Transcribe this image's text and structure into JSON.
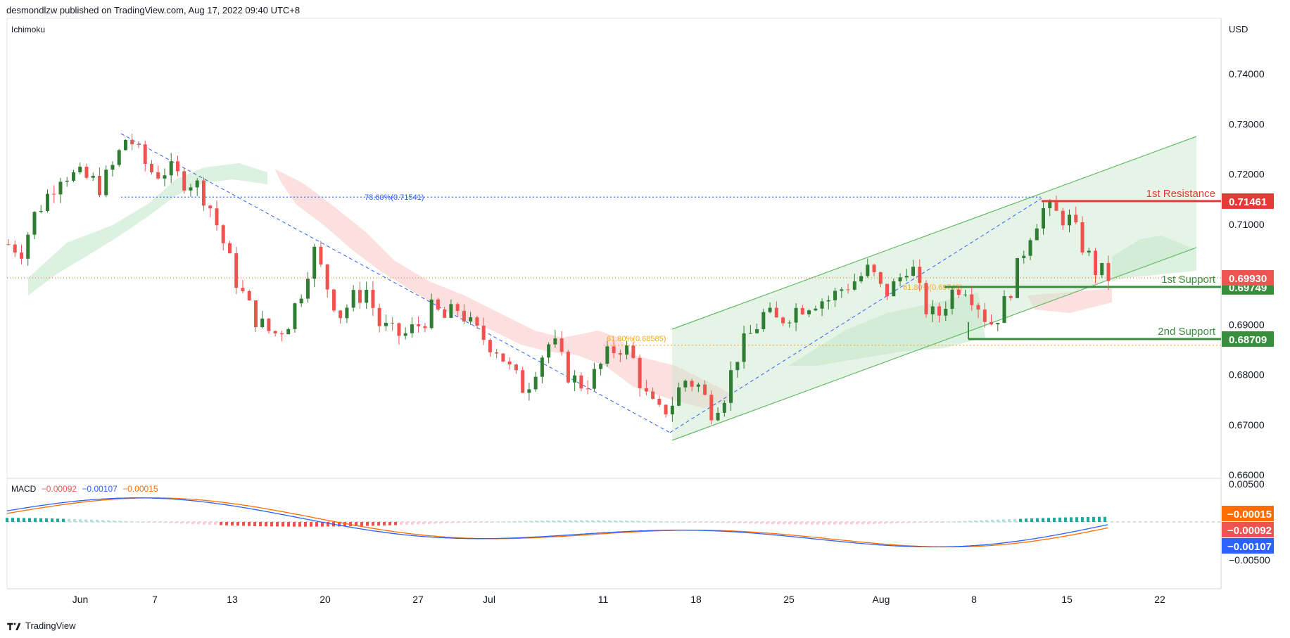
{
  "header": {
    "published": "desmondlzw published on TradingView.com, Aug 17, 2022 09:40 UTC+8"
  },
  "indicator_label": "Ichimoku",
  "currency": "USD",
  "macd_legend": {
    "label": "MACD",
    "hist": "−0.00092",
    "macd": "−0.00107",
    "signal": "−0.00015"
  },
  "footer": {
    "brand": "TradingView",
    "logo_icon": "tradingview-logo-icon"
  },
  "colors": {
    "up": "#26a69a",
    "down": "#ef5350",
    "candle_up": "#2e7d32",
    "resistance": "#e53935",
    "support": "#388e3c",
    "channel": "#81c784",
    "fib": "#2962ff",
    "fib_gold": "#f9a825",
    "macd": "#2962ff",
    "signal": "#ff6d00"
  },
  "chart_data": {
    "type": "candlestick",
    "symbol_currency": "USD",
    "x_ticks": [
      "Jun",
      "7",
      "13",
      "20",
      "27",
      "Jul",
      "11",
      "18",
      "25",
      "Aug",
      "8",
      "15",
      "22"
    ],
    "y_ticks": [
      "0.74000",
      "0.73000",
      "0.72000",
      "0.71000",
      "0.70000",
      "0.69000",
      "0.68000",
      "0.67000",
      "0.66000"
    ],
    "ylim": [
      0.658,
      0.749
    ],
    "macd_ticks": [
      "0.00500",
      "−0.00500"
    ],
    "levels": [
      {
        "name": "1st Resistance",
        "value": "0.71461",
        "kind": "resistance"
      },
      {
        "name": "1st Support",
        "value": "0.69749",
        "kind": "support"
      },
      {
        "name": "2nd Support",
        "value": "0.68709",
        "kind": "support"
      }
    ],
    "last_price": "0.69930",
    "fib_labels": [
      {
        "text": "78.60%(0.71541)",
        "value": 0.71541
      },
      {
        "text": "61.80%(0.68585)",
        "value": 0.68585
      },
      {
        "text": "61.80%(0.69749)",
        "value": 0.69749
      }
    ],
    "macd_price_tags": [
      "−0.00015",
      "−0.00092",
      "−0.00107"
    ],
    "close_path": [
      [
        0.706,
        0.705
      ],
      [
        0.712,
        0.716
      ],
      [
        0.7205,
        0.7195
      ],
      [
        0.719,
        0.7175
      ],
      [
        0.722,
        0.728
      ],
      [
        0.723,
        0.72
      ],
      [
        0.721,
        0.719
      ],
      [
        0.7185,
        0.715
      ],
      [
        0.708,
        0.7
      ],
      [
        0.694,
        0.69
      ],
      [
        0.688,
        0.69
      ],
      [
        0.696,
        0.705
      ],
      [
        0.698,
        0.692
      ],
      [
        0.695,
        0.697
      ],
      [
        0.69,
        0.688
      ],
      [
        0.688,
        0.69
      ],
      [
        0.693,
        0.691
      ],
      [
        0.6935,
        0.689
      ],
      [
        0.687,
        0.685
      ],
      [
        0.68,
        0.677
      ],
      [
        0.683,
        0.687
      ],
      [
        0.681,
        0.678
      ],
      [
        0.679,
        0.683
      ],
      [
        0.686,
        0.684
      ],
      [
        0.676,
        0.672
      ],
      [
        0.674,
        0.679
      ],
      [
        0.678,
        0.673
      ],
      [
        0.676,
        0.684
      ],
      [
        0.688,
        0.692
      ],
      [
        0.6905,
        0.6925
      ],
      [
        0.694,
        0.695
      ],
      [
        0.695,
        0.6975
      ],
      [
        0.699,
        0.701
      ],
      [
        0.696,
        0.698
      ],
      [
        0.703,
        0.694
      ],
      [
        0.691,
        0.696
      ],
      [
        0.6985,
        0.695
      ],
      [
        0.69,
        0.693
      ],
      [
        0.7,
        0.708
      ],
      [
        0.713,
        0.712
      ],
      [
        0.711,
        0.706
      ],
      [
        0.701,
        0.6995
      ]
    ]
  }
}
